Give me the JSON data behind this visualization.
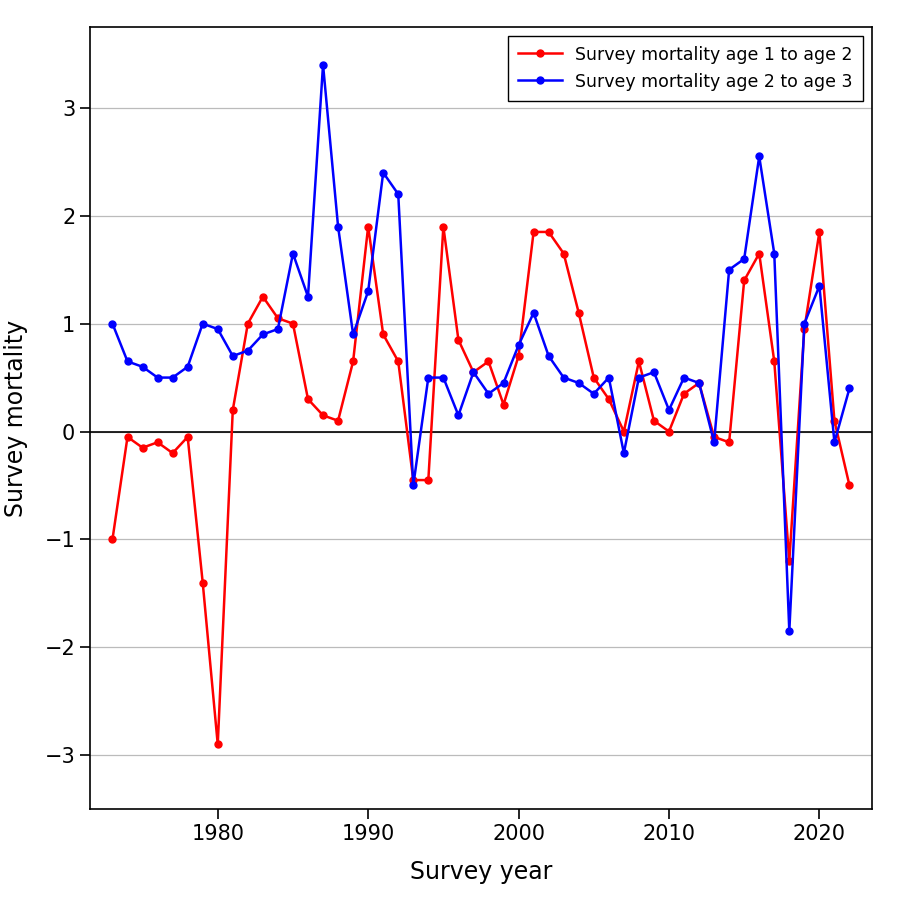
{
  "red_years": [
    1973,
    1974,
    1975,
    1976,
    1977,
    1978,
    1979,
    1980,
    1981,
    1982,
    1983,
    1984,
    1985,
    1986,
    1987,
    1988,
    1989,
    1990,
    1991,
    1992,
    1993,
    1994,
    1995,
    1996,
    1997,
    1998,
    1999,
    2000,
    2001,
    2002,
    2003,
    2004,
    2005,
    2006,
    2007,
    2008,
    2009,
    2010,
    2011,
    2012,
    2013,
    2014,
    2015,
    2016,
    2017,
    2018,
    2019,
    2020,
    2021,
    2022
  ],
  "red_values": [
    -1.0,
    -0.05,
    -0.15,
    -0.1,
    -0.2,
    -0.05,
    -1.4,
    -2.9,
    0.2,
    1.0,
    1.25,
    1.05,
    1.0,
    0.3,
    0.15,
    0.1,
    0.65,
    1.9,
    0.9,
    0.65,
    -0.45,
    -0.45,
    1.9,
    0.85,
    0.55,
    0.65,
    0.25,
    0.7,
    1.85,
    1.85,
    1.65,
    1.1,
    0.5,
    0.3,
    0.0,
    0.65,
    0.1,
    0.0,
    0.35,
    0.45,
    -0.05,
    -0.1,
    1.4,
    1.65,
    0.65,
    -1.2,
    0.95,
    1.85,
    0.1,
    -0.5
  ],
  "blue_years": [
    1973,
    1974,
    1975,
    1976,
    1977,
    1978,
    1979,
    1980,
    1981,
    1982,
    1983,
    1984,
    1985,
    1986,
    1987,
    1988,
    1989,
    1990,
    1991,
    1992,
    1993,
    1994,
    1995,
    1996,
    1997,
    1998,
    1999,
    2000,
    2001,
    2002,
    2003,
    2004,
    2005,
    2006,
    2007,
    2008,
    2009,
    2010,
    2011,
    2012,
    2013,
    2014,
    2015,
    2016,
    2017,
    2018,
    2019,
    2020,
    2021,
    2022
  ],
  "blue_values": [
    1.0,
    0.65,
    0.6,
    0.5,
    0.5,
    0.6,
    1.0,
    0.95,
    0.7,
    0.75,
    0.9,
    0.95,
    1.65,
    1.25,
    3.4,
    1.9,
    0.9,
    1.3,
    2.4,
    2.2,
    -0.5,
    0.5,
    0.5,
    0.15,
    0.55,
    0.35,
    0.45,
    0.8,
    1.1,
    0.7,
    0.5,
    0.45,
    0.35,
    0.5,
    -0.2,
    0.5,
    0.55,
    0.2,
    0.5,
    0.45,
    -0.1,
    1.5,
    1.6,
    2.55,
    1.65,
    -1.85,
    1.0,
    1.35,
    -0.1,
    0.4
  ],
  "xlabel": "Survey year",
  "ylabel": "Survey mortality",
  "ylim": [
    -3.5,
    3.75
  ],
  "xlim": [
    1971.5,
    2023.5
  ],
  "yticks": [
    -3,
    -2,
    -1,
    0,
    1,
    2,
    3
  ],
  "xticks": [
    1980,
    1990,
    2000,
    2010,
    2020
  ],
  "red_color": "#FF0000",
  "blue_color": "#0000FF",
  "background_color": "#FFFFFF",
  "grid_color": "#BBBBBB",
  "legend_label_red": "Survey mortality age 1 to age 2",
  "legend_label_blue": "Survey mortality age 2 to age 3"
}
